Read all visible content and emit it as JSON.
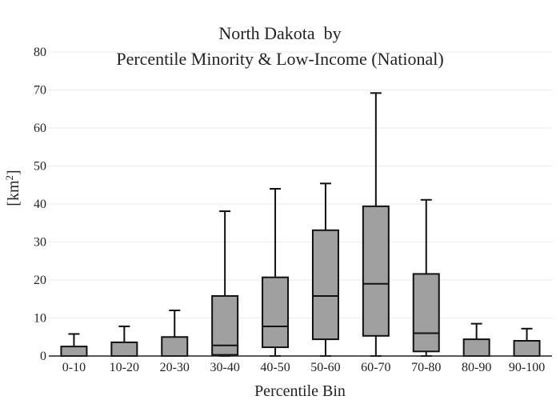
{
  "chart_data": {
    "type": "box",
    "title_line1": "North Dakota  by",
    "title_line2": "Percentile Minority & Low-Income (National)",
    "xlabel": "Percentile Bin",
    "ylabel_base": "[km",
    "ylabel_sup": "2",
    "ylabel_close": "]",
    "ylim": [
      0,
      80
    ],
    "yticks": [
      0,
      10,
      20,
      30,
      40,
      50,
      60,
      70,
      80
    ],
    "grid": true,
    "colors": {
      "box_fill": "#a0a0a0",
      "box_stroke": "#111111",
      "grid": "#ebebeb",
      "axis": "#222222"
    },
    "categories": [
      "0-10",
      "10-20",
      "20-30",
      "30-40",
      "40-50",
      "50-60",
      "60-70",
      "70-80",
      "80-90",
      "90-100"
    ],
    "boxes": [
      {
        "min": 0,
        "q1": 0,
        "median": 0,
        "q3": 2.5,
        "max": 5.8
      },
      {
        "min": 0,
        "q1": 0,
        "median": 0,
        "q3": 3.6,
        "max": 7.8
      },
      {
        "min": 0,
        "q1": 0,
        "median": 0,
        "q3": 5.0,
        "max": 12.0
      },
      {
        "min": 0,
        "q1": 0.3,
        "median": 2.8,
        "q3": 15.8,
        "max": 38.1
      },
      {
        "min": 0,
        "q1": 2.3,
        "median": 7.8,
        "q3": 20.7,
        "max": 44.0
      },
      {
        "min": 0,
        "q1": 4.4,
        "median": 15.8,
        "q3": 33.1,
        "max": 45.4
      },
      {
        "min": 0,
        "q1": 5.3,
        "median": 19.0,
        "q3": 39.4,
        "max": 69.2
      },
      {
        "min": 0,
        "q1": 1.2,
        "median": 6.0,
        "q3": 21.6,
        "max": 41.1
      },
      {
        "min": 0,
        "q1": 0,
        "median": 0,
        "q3": 4.4,
        "max": 8.5
      },
      {
        "min": 0,
        "q1": 0,
        "median": 0,
        "q3": 4.0,
        "max": 7.2
      }
    ]
  }
}
